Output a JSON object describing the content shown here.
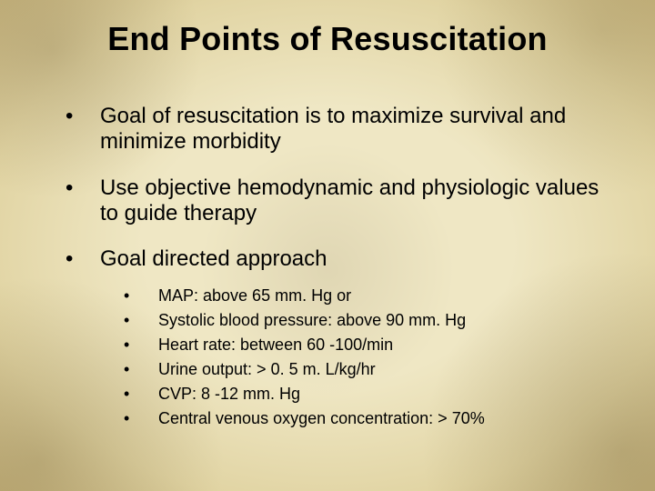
{
  "slide": {
    "title": "End Points of Resuscitation",
    "title_fontsize": 36,
    "title_fontweight": 700,
    "title_color": "#000000",
    "background_base": "#efe7c4",
    "background_edge": "#cbb983",
    "body_fontsize_main": 24,
    "body_fontsize_sub": 18,
    "text_color": "#000000",
    "bullets": [
      {
        "text": "Goal of resuscitation is to maximize survival and minimize morbidity"
      },
      {
        "text": "Use objective hemodynamic and physiologic values to guide therapy"
      },
      {
        "text": "Goal directed approach",
        "sub": [
          "MAP: above 65 mm. Hg or",
          "Systolic blood pressure: above 90 mm. Hg",
          "Heart rate: between 60 -100/min",
          "Urine output: > 0. 5 m. L/kg/hr",
          "CVP: 8 -12 mm. Hg",
          "Central venous oxygen concentration: > 70%"
        ]
      }
    ]
  }
}
